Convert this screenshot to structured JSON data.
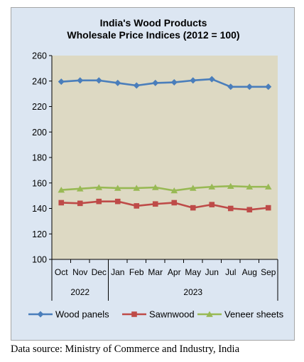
{
  "chart_data": {
    "type": "line",
    "title_lines": [
      "India's Wood Products",
      "Wholesale Price Indices (2012 = 100)"
    ],
    "categories": [
      "Oct",
      "Nov",
      "Dec",
      "Jan",
      "Feb",
      "Mar",
      "Apr",
      "May",
      "Jun",
      "Jul",
      "Aug",
      "Sep"
    ],
    "year_groups": [
      {
        "label": "2022",
        "start": 0,
        "end": 2
      },
      {
        "label": "2023",
        "start": 3,
        "end": 11
      }
    ],
    "ylim": [
      100,
      260
    ],
    "yticks": [
      100,
      120,
      140,
      160,
      180,
      200,
      220,
      240,
      260
    ],
    "grid": false,
    "legend_position": "bottom",
    "series": [
      {
        "name": "Wood panels",
        "color": "#4a7ebb",
        "marker": "diamond",
        "values": [
          239.5,
          240.5,
          240.5,
          238.5,
          236.5,
          238.5,
          239,
          240.5,
          241.5,
          235.5,
          235.5,
          235.5
        ]
      },
      {
        "name": "Sawnwood",
        "color": "#be4b48",
        "marker": "square",
        "values": [
          144.5,
          144,
          145.5,
          145.5,
          142,
          143.5,
          144.5,
          140.5,
          143,
          140,
          139,
          140.5
        ]
      },
      {
        "name": "Veneer sheets",
        "color": "#98b954",
        "marker": "triangle",
        "values": [
          154.5,
          155.5,
          156.5,
          156,
          156,
          156.5,
          154,
          156,
          157,
          157.5,
          157,
          157
        ]
      }
    ]
  },
  "colors": {
    "background": "#dce6f2",
    "plot_area": "#ddd9c3"
  },
  "source": "Data source: Ministry of Commerce and Industry, India"
}
